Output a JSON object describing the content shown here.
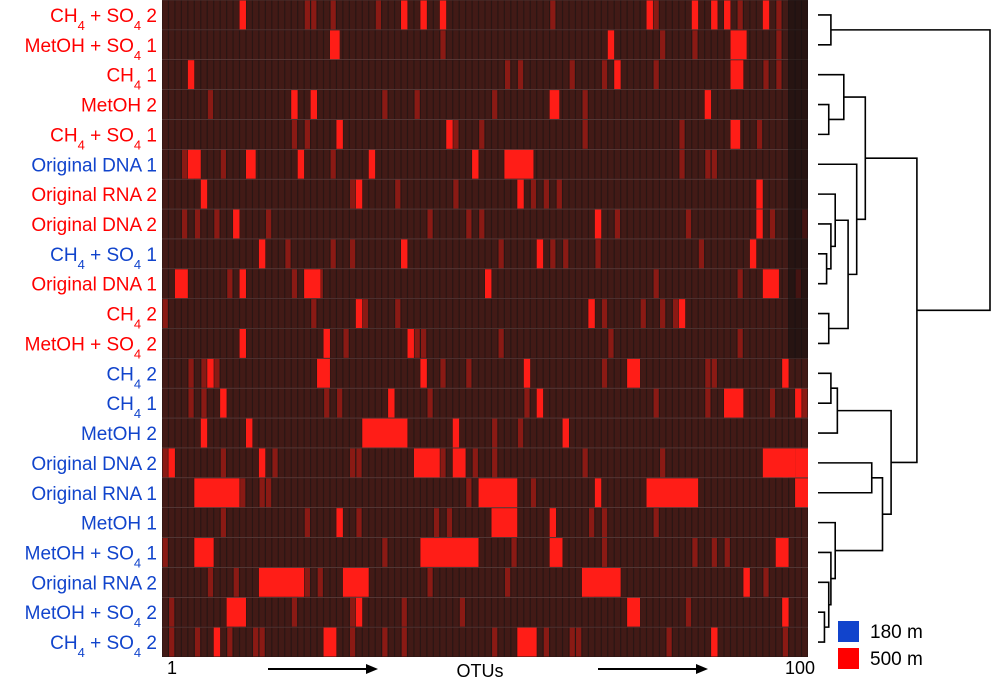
{
  "chart_data": {
    "type": "heatmap",
    "x_axis": {
      "title": "OTUs",
      "start_label": "1",
      "end_label": "100",
      "n": 100
    },
    "colors": {
      "background": "#2a1614",
      "cell_dark": "#421a16",
      "cell_mid": "#8a1a14",
      "cell_high": "#ff1d17",
      "depth_180": "#1144cc",
      "depth_500": "#ff0000",
      "dendrogram": "#000000"
    },
    "legend": [
      {
        "label": "180 m",
        "color": "#1144cc"
      },
      {
        "label": "500 m",
        "color": "#ff0000"
      }
    ],
    "rows": [
      {
        "label": "CH4 + SO4 2",
        "depth": "500 m",
        "main": "CH",
        "sub1": "4",
        "mid": " + SO",
        "sub2": "4",
        "tail": " 2",
        "hot": [
          [
            12,
            1
          ],
          [
            37,
            1
          ],
          [
            40,
            1
          ],
          [
            43,
            1
          ],
          [
            75,
            1
          ],
          [
            82,
            1
          ],
          [
            85,
            1
          ],
          [
            87,
            1
          ],
          [
            93,
            1
          ]
        ]
      },
      {
        "label": "MetOH + SO4 1",
        "depth": "500 m",
        "main": "MetOH + SO",
        "sub1": "4",
        "mid": "",
        "sub2": "",
        "tail": " 1",
        "hot": [
          [
            26,
            1.5
          ],
          [
            88,
            2.5
          ],
          [
            69,
            1
          ]
        ]
      },
      {
        "label": "CH4 1",
        "depth": "500 m",
        "main": "CH",
        "sub1": "4",
        "mid": "",
        "sub2": "",
        "tail": " 1",
        "hot": [
          [
            88,
            2
          ],
          [
            70,
            1
          ],
          [
            4,
            1
          ]
        ]
      },
      {
        "label": "MetOH 2",
        "depth": "500 m",
        "main": "MetOH 2",
        "sub1": "",
        "mid": "",
        "sub2": "",
        "tail": "",
        "hot": [
          [
            60,
            1.5
          ],
          [
            20,
            1
          ],
          [
            23,
            1
          ],
          [
            84,
            1
          ]
        ]
      },
      {
        "label": "CH4 + SO4 1",
        "depth": "500 m",
        "main": "CH",
        "sub1": "4",
        "mid": " + SO",
        "sub2": "4",
        "tail": " 1",
        "hot": [
          [
            88,
            1.5
          ],
          [
            27,
            1
          ],
          [
            44,
            1
          ]
        ]
      },
      {
        "label": "Original DNA 1",
        "depth": "180 m",
        "main": "Original DNA 1",
        "sub1": "",
        "mid": "",
        "sub2": "",
        "tail": "",
        "hot": [
          [
            4,
            2
          ],
          [
            13,
            1.5
          ],
          [
            21,
            1
          ],
          [
            53,
            4.5
          ],
          [
            48,
            1
          ],
          [
            32,
            1
          ]
        ]
      },
      {
        "label": "Original RNA 2",
        "depth": "500 m",
        "main": "Original RNA 2",
        "sub1": "",
        "mid": "",
        "sub2": "",
        "tail": "",
        "hot": [
          [
            92,
            1
          ],
          [
            6,
            1
          ],
          [
            30,
            1
          ],
          [
            55,
            1
          ]
        ]
      },
      {
        "label": "Original DNA 2",
        "depth": "500 m",
        "main": "Original DNA 2",
        "sub1": "",
        "mid": "",
        "sub2": "",
        "tail": "",
        "hot": [
          [
            92,
            1
          ],
          [
            11,
            1
          ],
          [
            67,
            1
          ]
        ]
      },
      {
        "label": "CH4 + SO4 1",
        "depth": "180 m",
        "main": "CH",
        "sub1": "4",
        "mid": " + SO",
        "sub2": "4",
        "tail": " 1",
        "hot": [
          [
            91,
            1
          ],
          [
            37,
            1
          ],
          [
            58,
            1
          ],
          [
            15,
            1
          ]
        ]
      },
      {
        "label": "Original DNA 1",
        "depth": "500 m",
        "main": "Original DNA 1",
        "sub1": "",
        "mid": "",
        "sub2": "",
        "tail": "",
        "hot": [
          [
            2,
            2
          ],
          [
            12,
            1
          ],
          [
            22,
            2.5
          ],
          [
            93,
            2.5
          ],
          [
            50,
            1
          ]
        ]
      },
      {
        "label": "CH4 2",
        "depth": "500 m",
        "main": "CH",
        "sub1": "4",
        "mid": "",
        "sub2": "",
        "tail": " 2",
        "hot": [
          [
            80,
            1
          ],
          [
            30,
            1
          ],
          [
            66,
            1
          ]
        ]
      },
      {
        "label": "MetOH + SO4 2",
        "depth": "500 m",
        "main": "MetOH + SO",
        "sub1": "4",
        "mid": "",
        "sub2": "",
        "tail": " 2",
        "hot": [
          [
            12,
            1
          ],
          [
            38,
            1
          ],
          [
            25,
            1
          ]
        ]
      },
      {
        "label": "CH4 2",
        "depth": "180 m",
        "main": "CH",
        "sub1": "4",
        "mid": "",
        "sub2": "",
        "tail": " 2",
        "hot": [
          [
            24,
            2
          ],
          [
            72,
            2
          ],
          [
            7,
            1
          ],
          [
            40,
            1
          ],
          [
            96,
            1
          ],
          [
            56,
            1
          ]
        ]
      },
      {
        "label": "CH4 1",
        "depth": "180 m",
        "main": "CH",
        "sub1": "4",
        "mid": "",
        "sub2": "",
        "tail": " 1",
        "hot": [
          [
            87,
            3
          ],
          [
            9,
            1
          ],
          [
            35,
            1
          ],
          [
            58,
            1
          ],
          [
            98,
            1
          ]
        ]
      },
      {
        "label": "MetOH 2",
        "depth": "180 m",
        "main": "MetOH 2",
        "sub1": "",
        "mid": "",
        "sub2": "",
        "tail": "",
        "hot": [
          [
            31,
            7
          ],
          [
            6,
            1
          ],
          [
            13,
            1
          ],
          [
            45,
            1
          ],
          [
            62,
            1
          ]
        ]
      },
      {
        "label": "Original DNA 2",
        "depth": "180 m",
        "main": "Original DNA 2",
        "sub1": "",
        "mid": "",
        "sub2": "",
        "tail": "",
        "hot": [
          [
            93,
            5
          ],
          [
            39,
            4
          ],
          [
            1,
            1
          ],
          [
            15,
            1
          ],
          [
            45,
            2
          ],
          [
            98,
            2
          ]
        ]
      },
      {
        "label": "Original RNA 1",
        "depth": "180 m",
        "main": "Original RNA 1",
        "sub1": "",
        "mid": "",
        "sub2": "",
        "tail": "",
        "hot": [
          [
            75,
            8
          ],
          [
            5,
            7
          ],
          [
            49,
            6
          ],
          [
            67,
            1
          ],
          [
            98,
            2
          ]
        ]
      },
      {
        "label": "MetOH 1",
        "depth": "180 m",
        "main": "MetOH 1",
        "sub1": "",
        "mid": "",
        "sub2": "",
        "tail": "",
        "hot": [
          [
            51,
            4
          ],
          [
            27,
            1
          ],
          [
            60,
            1
          ]
        ]
      },
      {
        "label": "MetOH + SO4 1",
        "depth": "180 m",
        "main": "MetOH + SO",
        "sub1": "4",
        "mid": "",
        "sub2": "",
        "tail": " 1",
        "hot": [
          [
            40,
            9
          ],
          [
            5,
            3
          ],
          [
            60,
            2
          ],
          [
            95,
            2
          ]
        ]
      },
      {
        "label": "Original RNA 2",
        "depth": "180 m",
        "main": "Original RNA 2",
        "sub1": "",
        "mid": "",
        "sub2": "",
        "tail": "",
        "hot": [
          [
            65,
            6
          ],
          [
            15,
            7
          ],
          [
            28,
            4
          ],
          [
            90,
            1
          ]
        ]
      },
      {
        "label": "MetOH + SO4 2",
        "depth": "180 m",
        "main": "MetOH + SO",
        "sub1": "4",
        "mid": "",
        "sub2": "",
        "tail": " 2",
        "hot": [
          [
            72,
            2
          ],
          [
            10,
            3
          ],
          [
            30,
            1
          ],
          [
            96,
            1
          ]
        ]
      },
      {
        "label": "CH4 + SO4 2",
        "depth": "180 m",
        "main": "CH",
        "sub1": "4",
        "mid": " + SO",
        "sub2": "4",
        "tail": " 2",
        "hot": [
          [
            55,
            3
          ],
          [
            8,
            1
          ],
          [
            25,
            2
          ],
          [
            85,
            1
          ]
        ]
      }
    ],
    "dendrogram": {
      "leaf_order": [
        0,
        1,
        2,
        3,
        4,
        5,
        6,
        7,
        8,
        9,
        10,
        11,
        12,
        13,
        14,
        15,
        16,
        17,
        18,
        19,
        20,
        21
      ],
      "merges": [
        [
          0,
          1,
          0.6
        ],
        [
          3,
          4,
          0.5
        ],
        [
          2,
          "m1",
          1.2
        ],
        [
          8,
          9,
          0.4
        ],
        [
          7,
          "m3",
          0.6
        ],
        [
          6,
          "m4",
          0.8
        ],
        [
          10,
          11,
          0.5
        ],
        [
          "m5",
          "m6",
          1.4
        ],
        [
          5,
          "m7",
          1.8
        ],
        [
          "m2",
          "m8",
          2.2
        ],
        [
          12,
          13,
          0.6
        ],
        [
          "m10",
          14,
          0.9
        ],
        [
          20,
          21,
          0.3
        ],
        [
          19,
          "m12",
          0.5
        ],
        [
          18,
          "m13",
          0.6
        ],
        [
          17,
          "m14",
          0.8
        ],
        [
          15,
          16,
          2.5
        ],
        [
          "m16",
          "m15",
          3.0
        ],
        [
          "m11",
          "m17",
          3.4
        ],
        [
          "m9",
          "m18",
          4.6
        ],
        [
          "m0",
          "m19",
          8.0
        ]
      ]
    }
  }
}
